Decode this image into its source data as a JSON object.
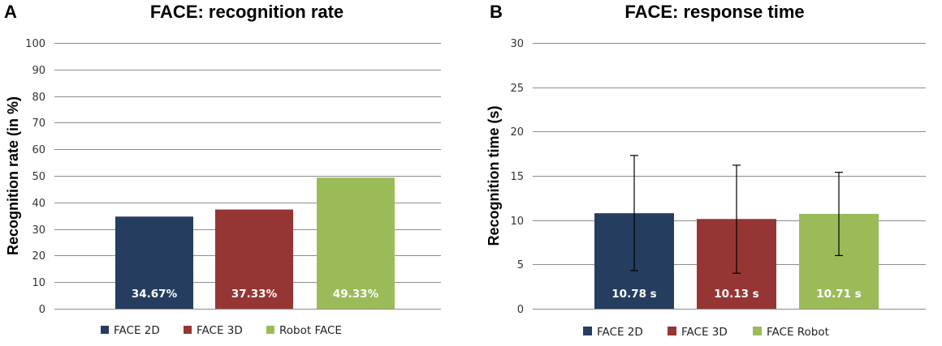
{
  "chart_data": [
    {
      "panel": "A",
      "type": "bar",
      "title": "FACE: recognition rate",
      "xlabel": "",
      "ylabel": "Recognition rate (in %)",
      "ylim": [
        0,
        100
      ],
      "yticks": [
        0,
        10,
        20,
        30,
        40,
        50,
        60,
        70,
        80,
        90,
        100
      ],
      "grid": true,
      "legend_position": "bottom",
      "series": [
        {
          "name": "FACE 2D",
          "value": 34.67,
          "label": "34.67%",
          "color": "#253e5f"
        },
        {
          "name": "FACE 3D",
          "value": 37.33,
          "label": "37.33%",
          "color": "#963634"
        },
        {
          "name": "Robot FACE",
          "value": 49.33,
          "label": "49.33%",
          "color": "#9bbb59"
        }
      ]
    },
    {
      "panel": "B",
      "type": "bar",
      "title": "FACE: response time",
      "xlabel": "",
      "ylabel": "Recognition time (s)",
      "ylim": [
        0,
        30
      ],
      "yticks": [
        0,
        5,
        10,
        15,
        20,
        25,
        30
      ],
      "grid": true,
      "legend_position": "bottom",
      "series": [
        {
          "name": "FACE 2D",
          "value": 10.78,
          "label": "10.78 s",
          "error": [
            4.3,
            17.3
          ],
          "color": "#253e5f"
        },
        {
          "name": "FACE 3D",
          "value": 10.13,
          "label": "10.13 s",
          "error": [
            4.0,
            16.2
          ],
          "color": "#963634"
        },
        {
          "name": "FACE Robot",
          "value": 10.71,
          "label": "10.71 s",
          "error": [
            6.0,
            15.4
          ],
          "color": "#9bbb59"
        }
      ]
    }
  ]
}
